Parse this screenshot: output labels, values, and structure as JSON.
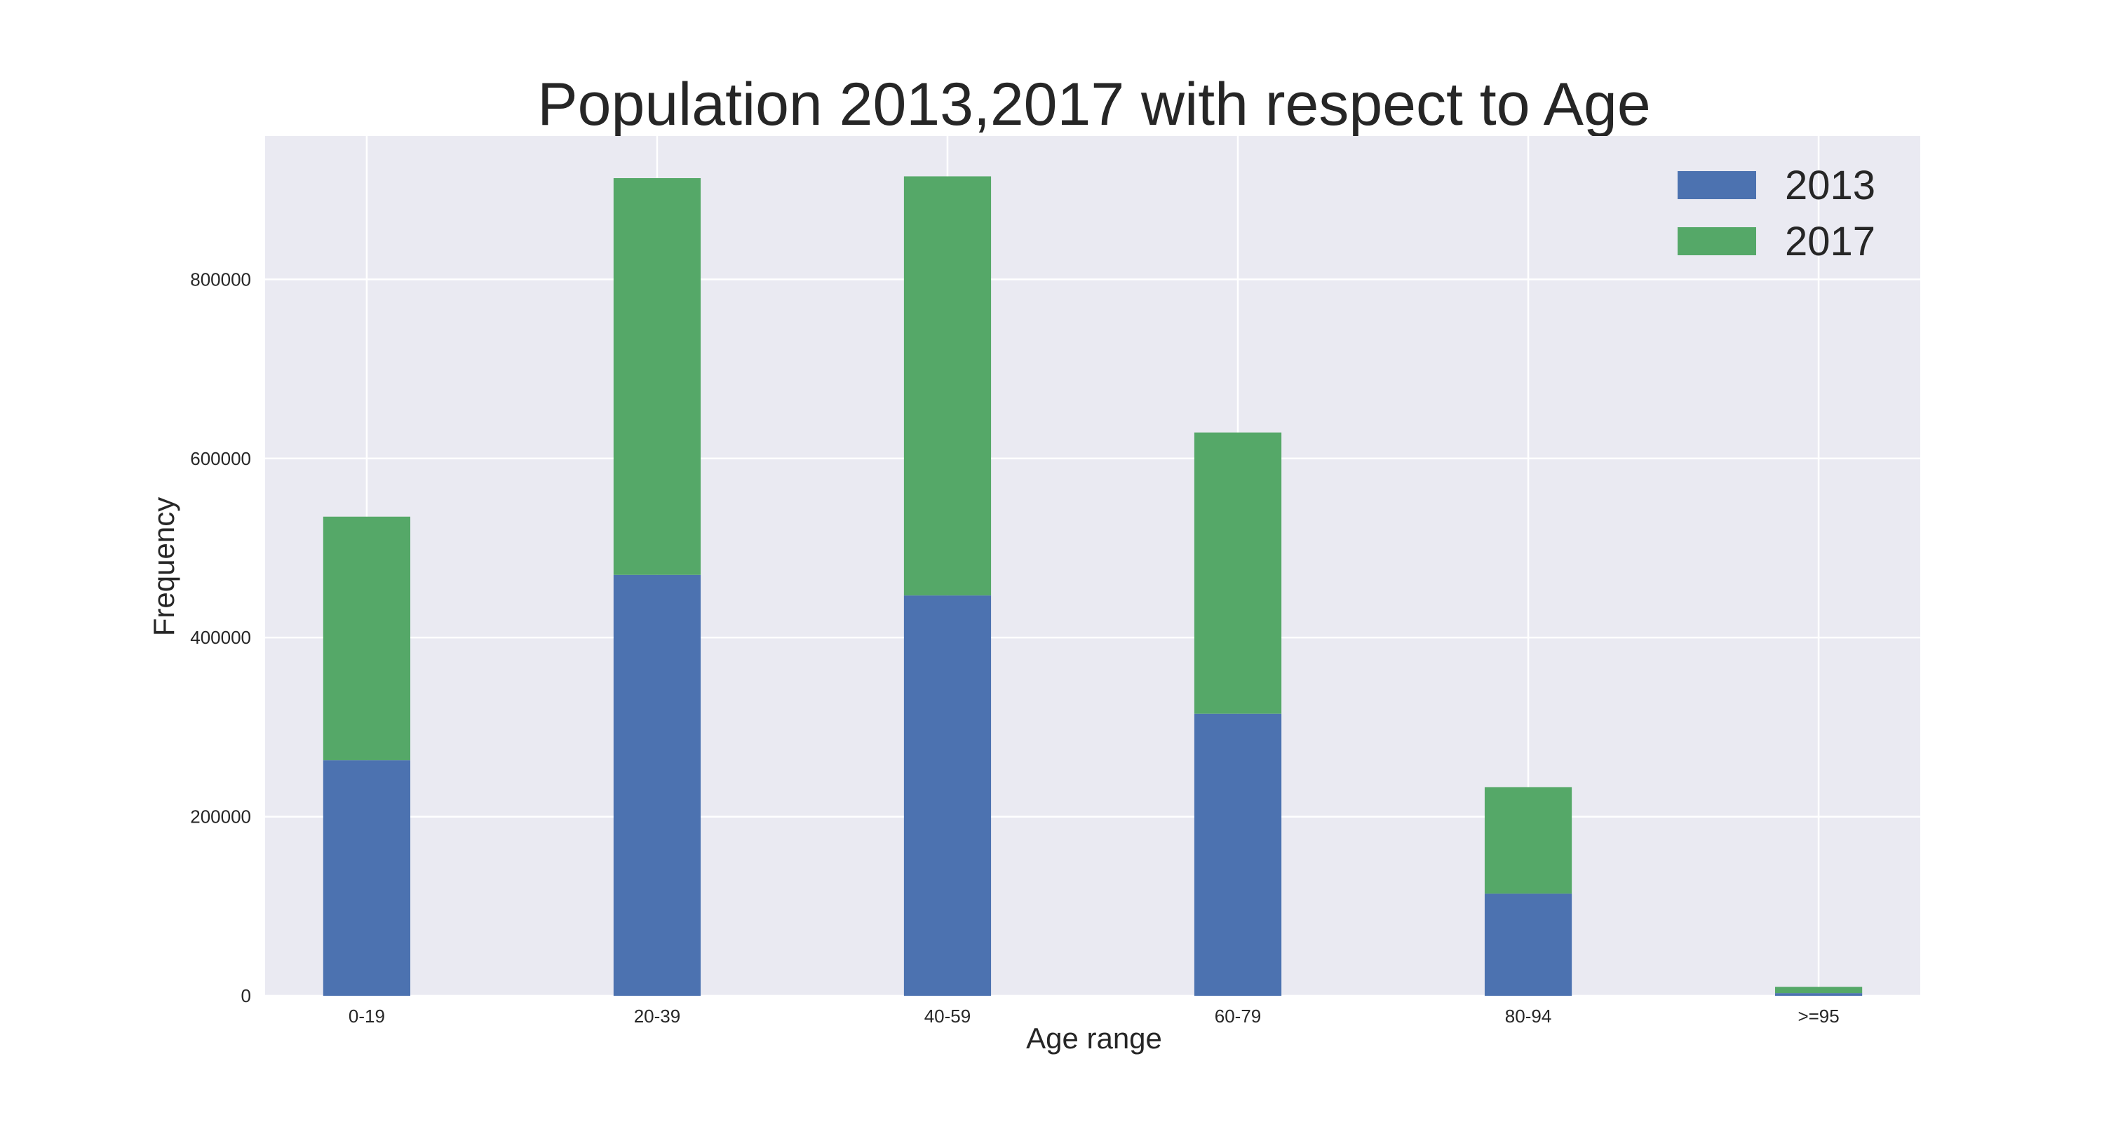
{
  "chart_data": {
    "type": "bar",
    "stacked": true,
    "title": "Population 2013,2017 with respect to Age",
    "xlabel": "Age range",
    "ylabel": "Frequency",
    "categories": [
      "0-19",
      "20-39",
      "40-59",
      "60-79",
      "80-94",
      ">=95"
    ],
    "series": [
      {
        "name": "2013",
        "color": "#4c72b0",
        "values": [
          263000,
          470000,
          447000,
          315000,
          114000,
          3000
        ]
      },
      {
        "name": "2017",
        "color": "#55a868",
        "values": [
          272000,
          443000,
          468000,
          314000,
          119000,
          7000
        ]
      }
    ],
    "ylim": [
      0,
      960000
    ],
    "yticks": [
      0,
      200000,
      400000,
      600000,
      800000
    ],
    "ytick_labels": [
      "0",
      "200000",
      "400000",
      "600000",
      "800000"
    ],
    "grid": true,
    "legend_position": "top-right",
    "background": "#eaeaf2"
  }
}
